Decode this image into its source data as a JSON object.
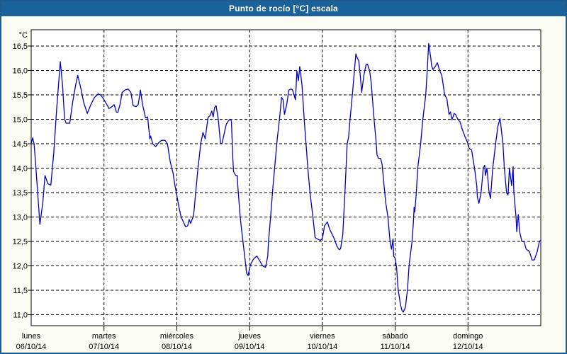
{
  "window": {
    "title": "Punto de rocío [°C] escala"
  },
  "colors": {
    "titlebar": "#1a6299",
    "window_border": "#1e5c90",
    "background": "#fbfcf4",
    "plot_background": "#ffffff",
    "grid": "#000000",
    "line": "#0000c6"
  },
  "chart_data": {
    "type": "line",
    "title": "Punto de rocío [°C] escala",
    "unit_label": "°C",
    "ylabel": "°C",
    "ylim": [
      11.0,
      16.5
    ],
    "y_tick_step": 0.5,
    "y_tick_labels": [
      "16,5",
      "16,0",
      "15,5",
      "15,0",
      "14,5",
      "14,0",
      "13,5",
      "13,0",
      "12,5",
      "12,0",
      "11,5",
      "11,0"
    ],
    "grid": true,
    "legend": "none",
    "x_days": [
      {
        "name": "lunes",
        "date": "06/10/14"
      },
      {
        "name": "martes",
        "date": "07/10/14"
      },
      {
        "name": "miércoles",
        "date": "08/10/14"
      },
      {
        "name": "jueves",
        "date": "09/10/14"
      },
      {
        "name": "viernes",
        "date": "10/10/14"
      },
      {
        "name": "sábado",
        "date": "11/10/14"
      },
      {
        "name": "domingo",
        "date": "12/10/14"
      }
    ],
    "series": [
      {
        "name": "Punto de rocío",
        "color": "#0000c6",
        "x_unit": "days_from_monday",
        "points": [
          [
            0,
            14.5
          ],
          [
            0.02,
            14.62
          ],
          [
            0.04,
            14.5
          ],
          [
            0.06,
            14.1
          ],
          [
            0.12,
            12.85
          ],
          [
            0.16,
            13.3
          ],
          [
            0.19,
            13.85
          ],
          [
            0.23,
            13.68
          ],
          [
            0.27,
            13.65
          ],
          [
            0.31,
            14.3
          ],
          [
            0.35,
            15.2
          ],
          [
            0.4,
            16.18
          ],
          [
            0.43,
            15.7
          ],
          [
            0.46,
            15.0
          ],
          [
            0.48,
            14.92
          ],
          [
            0.53,
            14.92
          ],
          [
            0.57,
            15.35
          ],
          [
            0.61,
            15.7
          ],
          [
            0.64,
            15.9
          ],
          [
            0.68,
            15.65
          ],
          [
            0.72,
            15.35
          ],
          [
            0.77,
            15.12
          ],
          [
            0.82,
            15.3
          ],
          [
            0.87,
            15.45
          ],
          [
            0.92,
            15.52
          ],
          [
            0.95,
            15.5
          ],
          [
            0.98,
            15.45
          ],
          [
            1.04,
            15.3
          ],
          [
            1.07,
            15.22
          ],
          [
            1.11,
            15.26
          ],
          [
            1.14,
            15.3
          ],
          [
            1.17,
            15.15
          ],
          [
            1.19,
            15.14
          ],
          [
            1.22,
            15.3
          ],
          [
            1.25,
            15.55
          ],
          [
            1.29,
            15.6
          ],
          [
            1.33,
            15.62
          ],
          [
            1.37,
            15.55
          ],
          [
            1.4,
            15.28
          ],
          [
            1.44,
            15.26
          ],
          [
            1.47,
            15.3
          ],
          [
            1.5,
            15.6
          ],
          [
            1.53,
            15.3
          ],
          [
            1.57,
            15.03
          ],
          [
            1.6,
            15.05
          ],
          [
            1.63,
            14.6
          ],
          [
            1.64,
            14.66
          ],
          [
            1.67,
            14.5
          ],
          [
            1.71,
            14.44
          ],
          [
            1.75,
            14.52
          ],
          [
            1.79,
            14.57
          ],
          [
            1.84,
            14.57
          ],
          [
            1.87,
            14.5
          ],
          [
            1.88,
            14.42
          ],
          [
            1.91,
            14.13
          ],
          [
            1.95,
            13.89
          ],
          [
            1.97,
            13.69
          ],
          [
            2,
            13.45
          ],
          [
            2.03,
            13.2
          ],
          [
            2.06,
            13.0
          ],
          [
            2.09,
            12.9
          ],
          [
            2.12,
            12.8
          ],
          [
            2.15,
            12.82
          ],
          [
            2.17,
            12.95
          ],
          [
            2.19,
            12.87
          ],
          [
            2.21,
            12.95
          ],
          [
            2.23,
            13.02
          ],
          [
            2.26,
            13.5
          ],
          [
            2.29,
            13.98
          ],
          [
            2.33,
            14.51
          ],
          [
            2.36,
            14.73
          ],
          [
            2.39,
            14.6
          ],
          [
            2.43,
            15.04
          ],
          [
            2.46,
            15.08
          ],
          [
            2.48,
            15.17
          ],
          [
            2.5,
            15.05
          ],
          [
            2.52,
            15.24
          ],
          [
            2.54,
            15.28
          ],
          [
            2.57,
            15.0
          ],
          [
            2.6,
            14.51
          ],
          [
            2.62,
            14.5
          ],
          [
            2.65,
            14.7
          ],
          [
            2.68,
            14.9
          ],
          [
            2.71,
            14.97
          ],
          [
            2.73,
            15.0
          ],
          [
            2.75,
            14.97
          ],
          [
            2.76,
            14.6
          ],
          [
            2.77,
            14.2
          ],
          [
            2.78,
            13.93
          ],
          [
            2.81,
            13.85
          ],
          [
            2.83,
            13.85
          ],
          [
            2.84,
            13.6
          ],
          [
            2.87,
            13.02
          ],
          [
            2.89,
            12.75
          ],
          [
            2.91,
            12.49
          ],
          [
            2.94,
            12.1
          ],
          [
            2.96,
            11.85
          ],
          [
            2.98,
            11.8
          ],
          [
            3,
            11.95
          ],
          [
            3.02,
            12.05
          ],
          [
            3.06,
            12.15
          ],
          [
            3.1,
            12.2
          ],
          [
            3.14,
            12.1
          ],
          [
            3.18,
            12.0
          ],
          [
            3.22,
            11.97
          ],
          [
            3.25,
            12.2
          ],
          [
            3.26,
            12.49
          ],
          [
            3.29,
            13.02
          ],
          [
            3.32,
            13.6
          ],
          [
            3.35,
            14.1
          ],
          [
            3.38,
            14.6
          ],
          [
            3.41,
            15.0
          ],
          [
            3.44,
            15.45
          ],
          [
            3.46,
            15.4
          ],
          [
            3.48,
            15.1
          ],
          [
            3.51,
            15.3
          ],
          [
            3.54,
            15.6
          ],
          [
            3.57,
            15.62
          ],
          [
            3.59,
            15.6
          ],
          [
            3.61,
            15.5
          ],
          [
            3.63,
            15.4
          ],
          [
            3.65,
            15.99
          ],
          [
            3.67,
            15.79
          ],
          [
            3.69,
            16.08
          ],
          [
            3.72,
            15.7
          ],
          [
            3.75,
            15.0
          ],
          [
            3.78,
            14.4
          ],
          [
            3.8,
            14.0
          ],
          [
            3.83,
            13.5
          ],
          [
            3.87,
            13.0
          ],
          [
            3.9,
            12.58
          ],
          [
            3.93,
            12.55
          ],
          [
            3.97,
            12.52
          ],
          [
            4,
            12.56
          ],
          [
            4.03,
            12.82
          ],
          [
            4.07,
            12.9
          ],
          [
            4.1,
            12.75
          ],
          [
            4.14,
            12.63
          ],
          [
            4.17,
            12.53
          ],
          [
            4.2,
            12.4
          ],
          [
            4.23,
            12.33
          ],
          [
            4.25,
            12.35
          ],
          [
            4.28,
            12.63
          ],
          [
            4.31,
            13.5
          ],
          [
            4.34,
            14.5
          ],
          [
            4.36,
            14.63
          ],
          [
            4.38,
            15.0
          ],
          [
            4.41,
            15.48
          ],
          [
            4.44,
            16.0
          ],
          [
            4.46,
            16.34
          ],
          [
            4.48,
            16.25
          ],
          [
            4.5,
            16.2
          ],
          [
            4.52,
            15.9
          ],
          [
            4.54,
            15.55
          ],
          [
            4.57,
            15.9
          ],
          [
            4.6,
            16.12
          ],
          [
            4.62,
            16.13
          ],
          [
            4.65,
            15.99
          ],
          [
            4.67,
            15.75
          ],
          [
            4.71,
            15.0
          ],
          [
            4.74,
            14.5
          ],
          [
            4.75,
            14.28
          ],
          [
            4.77,
            14.2
          ],
          [
            4.8,
            14.2
          ],
          [
            4.82,
            14.08
          ],
          [
            4.85,
            13.6
          ],
          [
            4.87,
            13.3
          ],
          [
            4.9,
            13.0
          ],
          [
            4.93,
            12.49
          ],
          [
            4.95,
            12.34
          ],
          [
            4.97,
            12.55
          ],
          [
            4.98,
            12.2
          ],
          [
            5,
            12.15
          ],
          [
            5.02,
            11.96
          ],
          [
            5.04,
            11.52
          ],
          [
            5.07,
            11.23
          ],
          [
            5.09,
            11.1
          ],
          [
            5.11,
            11.05
          ],
          [
            5.14,
            11.15
          ],
          [
            5.17,
            11.52
          ],
          [
            5.19,
            12.0
          ],
          [
            5.23,
            12.48
          ],
          [
            5.25,
            12.9
          ],
          [
            5.26,
            13.2
          ],
          [
            5.27,
            13.1
          ],
          [
            5.29,
            13.5
          ],
          [
            5.31,
            14.0
          ],
          [
            5.35,
            14.5
          ],
          [
            5.38,
            15.0
          ],
          [
            5.42,
            15.5
          ],
          [
            5.44,
            16.0
          ],
          [
            5.46,
            16.55
          ],
          [
            5.49,
            16.25
          ],
          [
            5.5,
            16.1
          ],
          [
            5.52,
            16.02
          ],
          [
            5.55,
            16.08
          ],
          [
            5.58,
            16.16
          ],
          [
            5.61,
            16.0
          ],
          [
            5.64,
            15.9
          ],
          [
            5.68,
            15.5
          ],
          [
            5.71,
            15.42
          ],
          [
            5.74,
            15.1
          ],
          [
            5.76,
            15.15
          ],
          [
            5.78,
            14.99
          ],
          [
            5.81,
            15.12
          ],
          [
            5.83,
            15.1
          ],
          [
            5.86,
            15.0
          ],
          [
            5.89,
            14.95
          ],
          [
            5.92,
            14.8
          ],
          [
            5.96,
            14.64
          ],
          [
            6,
            14.5
          ],
          [
            6.02,
            14.4
          ],
          [
            6.05,
            14.37
          ],
          [
            6.09,
            14.0
          ],
          [
            6.12,
            13.65
          ],
          [
            6.13,
            13.4
          ],
          [
            6.15,
            13.28
          ],
          [
            6.18,
            13.5
          ],
          [
            6.21,
            14.0
          ],
          [
            6.23,
            14.06
          ],
          [
            6.24,
            13.85
          ],
          [
            6.26,
            14.0
          ],
          [
            6.29,
            13.5
          ],
          [
            6.31,
            13.38
          ],
          [
            6.34,
            14.0
          ],
          [
            6.38,
            14.5
          ],
          [
            6.41,
            14.85
          ],
          [
            6.44,
            15.02
          ],
          [
            6.48,
            14.5
          ],
          [
            6.5,
            14.0
          ],
          [
            6.53,
            13.5
          ],
          [
            6.55,
            13.45
          ],
          [
            6.57,
            14.0
          ],
          [
            6.6,
            13.64
          ],
          [
            6.62,
            14.03
          ],
          [
            6.63,
            13.5
          ],
          [
            6.66,
            13.0
          ],
          [
            6.67,
            12.7
          ],
          [
            6.69,
            13.05
          ],
          [
            6.71,
            12.7
          ],
          [
            6.74,
            12.5
          ],
          [
            6.77,
            12.49
          ],
          [
            6.8,
            12.34
          ],
          [
            6.84,
            12.3
          ],
          [
            6.86,
            12.22
          ],
          [
            6.88,
            12.12
          ],
          [
            6.91,
            12.12
          ],
          [
            6.95,
            12.29
          ],
          [
            6.98,
            12.49
          ],
          [
            7,
            12.53
          ]
        ]
      }
    ]
  }
}
